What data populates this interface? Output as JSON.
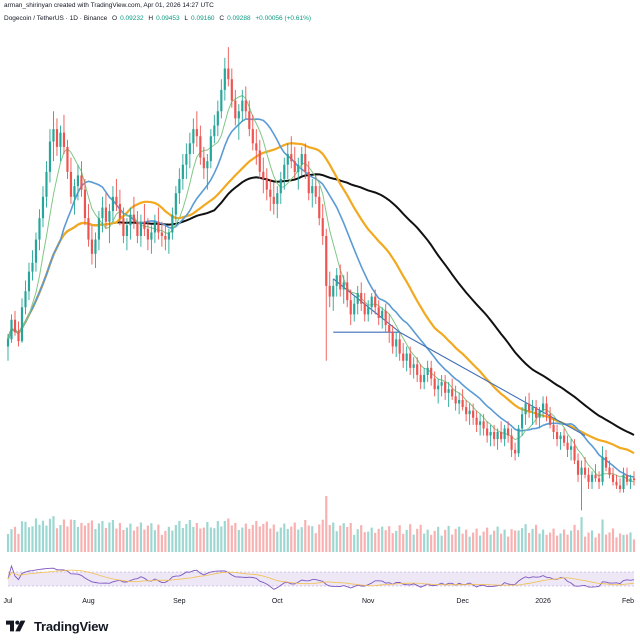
{
  "header": {
    "author_line": "arman_shirinyan created with TradingView.com, Apr 01, 2026 14:27 UTC",
    "symbol_line": "Dogecoin / TetherUS · 1D · Binance",
    "open_label": "O",
    "open_value": "0.09232",
    "high_label": "H",
    "high_value": "0.09453",
    "low_label": "L",
    "low_value": "0.09160",
    "close_label": "C",
    "close_value": "0.09288",
    "change_value": "+0.00056 (+0.61%)"
  },
  "footer": {
    "brand": "TradingView",
    "brand_logo": "tradingview-logo-icon"
  },
  "colors": {
    "up": "#26a69a",
    "down": "#ef5350",
    "ma_fast": "#81c784",
    "ma_blue": "#5b9bd5",
    "ma_orange": "#f2a91f",
    "ma_black": "#111111",
    "trendline": "#3f6fb5",
    "rsi": "#7e57c2",
    "rsi_band": "#ede7f6"
  },
  "chart_data": {
    "type": "candlestick",
    "x_labels": [
      "Jul",
      "Aug",
      "Sep",
      "Oct",
      "Nov",
      "Dec",
      "2026",
      "Feb"
    ],
    "y_axis": "hidden",
    "candles_ohlc": [
      [
        0.168,
        0.175,
        0.16,
        0.172
      ],
      [
        0.172,
        0.186,
        0.17,
        0.183
      ],
      [
        0.183,
        0.188,
        0.174,
        0.176
      ],
      [
        0.176,
        0.182,
        0.168,
        0.171
      ],
      [
        0.171,
        0.195,
        0.17,
        0.19
      ],
      [
        0.19,
        0.205,
        0.186,
        0.199
      ],
      [
        0.199,
        0.215,
        0.194,
        0.21
      ],
      [
        0.21,
        0.222,
        0.205,
        0.215
      ],
      [
        0.215,
        0.232,
        0.21,
        0.228
      ],
      [
        0.228,
        0.245,
        0.222,
        0.24
      ],
      [
        0.24,
        0.258,
        0.235,
        0.252
      ],
      [
        0.252,
        0.272,
        0.246,
        0.266
      ],
      [
        0.266,
        0.29,
        0.26,
        0.283
      ],
      [
        0.283,
        0.3,
        0.272,
        0.29
      ],
      [
        0.29,
        0.296,
        0.275,
        0.28
      ],
      [
        0.28,
        0.292,
        0.272,
        0.288
      ],
      [
        0.288,
        0.298,
        0.276,
        0.28
      ],
      [
        0.28,
        0.284,
        0.262,
        0.266
      ],
      [
        0.266,
        0.274,
        0.248,
        0.252
      ],
      [
        0.252,
        0.262,
        0.242,
        0.258
      ],
      [
        0.258,
        0.27,
        0.25,
        0.264
      ],
      [
        0.264,
        0.272,
        0.252,
        0.256
      ],
      [
        0.256,
        0.262,
        0.236,
        0.24
      ],
      [
        0.24,
        0.248,
        0.224,
        0.228
      ],
      [
        0.228,
        0.236,
        0.214,
        0.22
      ],
      [
        0.22,
        0.232,
        0.212,
        0.228
      ],
      [
        0.228,
        0.244,
        0.222,
        0.24
      ],
      [
        0.24,
        0.252,
        0.232,
        0.246
      ],
      [
        0.246,
        0.254,
        0.234,
        0.238
      ],
      [
        0.238,
        0.248,
        0.226,
        0.244
      ],
      [
        0.244,
        0.258,
        0.238,
        0.252
      ],
      [
        0.252,
        0.262,
        0.244,
        0.248
      ],
      [
        0.248,
        0.256,
        0.236,
        0.24
      ],
      [
        0.24,
        0.246,
        0.226,
        0.23
      ],
      [
        0.23,
        0.24,
        0.222,
        0.236
      ],
      [
        0.236,
        0.246,
        0.228,
        0.242
      ],
      [
        0.242,
        0.252,
        0.234,
        0.238
      ],
      [
        0.238,
        0.244,
        0.226,
        0.23
      ],
      [
        0.23,
        0.242,
        0.224,
        0.238
      ],
      [
        0.238,
        0.248,
        0.23,
        0.234
      ],
      [
        0.234,
        0.24,
        0.222,
        0.228
      ],
      [
        0.228,
        0.236,
        0.22,
        0.232
      ],
      [
        0.232,
        0.242,
        0.226,
        0.238
      ],
      [
        0.238,
        0.246,
        0.228,
        0.232
      ],
      [
        0.232,
        0.238,
        0.224,
        0.23
      ],
      [
        0.23,
        0.236,
        0.222,
        0.228
      ],
      [
        0.228,
        0.234,
        0.22,
        0.232
      ],
      [
        0.232,
        0.246,
        0.228,
        0.242
      ],
      [
        0.242,
        0.258,
        0.238,
        0.254
      ],
      [
        0.254,
        0.268,
        0.248,
        0.262
      ],
      [
        0.262,
        0.276,
        0.256,
        0.27
      ],
      [
        0.27,
        0.282,
        0.262,
        0.276
      ],
      [
        0.276,
        0.288,
        0.268,
        0.282
      ],
      [
        0.282,
        0.296,
        0.276,
        0.29
      ],
      [
        0.29,
        0.3,
        0.28,
        0.286
      ],
      [
        0.286,
        0.292,
        0.27,
        0.274
      ],
      [
        0.274,
        0.28,
        0.262,
        0.268
      ],
      [
        0.268,
        0.276,
        0.256,
        0.272
      ],
      [
        0.272,
        0.29,
        0.268,
        0.286
      ],
      [
        0.286,
        0.298,
        0.282,
        0.292
      ],
      [
        0.292,
        0.306,
        0.286,
        0.3
      ],
      [
        0.3,
        0.318,
        0.296,
        0.312
      ],
      [
        0.312,
        0.33,
        0.306,
        0.324
      ],
      [
        0.324,
        0.336,
        0.314,
        0.318
      ],
      [
        0.318,
        0.324,
        0.302,
        0.306
      ],
      [
        0.306,
        0.312,
        0.292,
        0.296
      ],
      [
        0.296,
        0.304,
        0.284,
        0.3
      ],
      [
        0.3,
        0.312,
        0.294,
        0.306
      ],
      [
        0.306,
        0.314,
        0.296,
        0.3
      ],
      [
        0.3,
        0.306,
        0.286,
        0.29
      ],
      [
        0.29,
        0.298,
        0.278,
        0.282
      ],
      [
        0.282,
        0.29,
        0.27,
        0.278
      ],
      [
        0.278,
        0.284,
        0.262,
        0.266
      ],
      [
        0.266,
        0.274,
        0.254,
        0.262
      ],
      [
        0.262,
        0.268,
        0.25,
        0.256
      ],
      [
        0.256,
        0.262,
        0.244,
        0.252
      ],
      [
        0.252,
        0.26,
        0.242,
        0.248
      ],
      [
        0.248,
        0.258,
        0.24,
        0.254
      ],
      [
        0.254,
        0.266,
        0.248,
        0.262
      ],
      [
        0.262,
        0.274,
        0.256,
        0.27
      ],
      [
        0.27,
        0.282,
        0.262,
        0.276
      ],
      [
        0.276,
        0.286,
        0.268,
        0.272
      ],
      [
        0.272,
        0.28,
        0.262,
        0.266
      ],
      [
        0.266,
        0.274,
        0.256,
        0.27
      ],
      [
        0.27,
        0.28,
        0.264,
        0.276
      ],
      [
        0.276,
        0.282,
        0.262,
        0.266
      ],
      [
        0.266,
        0.272,
        0.25,
        0.254
      ],
      [
        0.254,
        0.262,
        0.246,
        0.258
      ],
      [
        0.258,
        0.264,
        0.248,
        0.252
      ],
      [
        0.252,
        0.258,
        0.236,
        0.24
      ],
      [
        0.24,
        0.248,
        0.225,
        0.23
      ],
      [
        0.23,
        0.234,
        0.16,
        0.202
      ],
      [
        0.202,
        0.21,
        0.19,
        0.196
      ],
      [
        0.196,
        0.206,
        0.188,
        0.202
      ],
      [
        0.202,
        0.212,
        0.196,
        0.208
      ],
      [
        0.208,
        0.214,
        0.196,
        0.2
      ],
      [
        0.2,
        0.208,
        0.192,
        0.204
      ],
      [
        0.204,
        0.21,
        0.19,
        0.194
      ],
      [
        0.194,
        0.2,
        0.18,
        0.186
      ],
      [
        0.186,
        0.196,
        0.182,
        0.192
      ],
      [
        0.192,
        0.202,
        0.186,
        0.198
      ],
      [
        0.198,
        0.204,
        0.188,
        0.192
      ],
      [
        0.192,
        0.198,
        0.182,
        0.186
      ],
      [
        0.186,
        0.194,
        0.182,
        0.19
      ],
      [
        0.19,
        0.198,
        0.186,
        0.196
      ],
      [
        0.196,
        0.2,
        0.186,
        0.19
      ],
      [
        0.19,
        0.194,
        0.18,
        0.184
      ],
      [
        0.184,
        0.19,
        0.178,
        0.188
      ],
      [
        0.188,
        0.192,
        0.176,
        0.18
      ],
      [
        0.18,
        0.186,
        0.17,
        0.176
      ],
      [
        0.176,
        0.18,
        0.164,
        0.168
      ],
      [
        0.168,
        0.176,
        0.162,
        0.172
      ],
      [
        0.172,
        0.176,
        0.16,
        0.164
      ],
      [
        0.164,
        0.17,
        0.156,
        0.16
      ],
      [
        0.16,
        0.168,
        0.154,
        0.164
      ],
      [
        0.164,
        0.168,
        0.152,
        0.156
      ],
      [
        0.156,
        0.162,
        0.15,
        0.158
      ],
      [
        0.158,
        0.162,
        0.148,
        0.152
      ],
      [
        0.152,
        0.158,
        0.144,
        0.148
      ],
      [
        0.148,
        0.156,
        0.144,
        0.152
      ],
      [
        0.152,
        0.16,
        0.148,
        0.156
      ],
      [
        0.156,
        0.16,
        0.146,
        0.15
      ],
      [
        0.15,
        0.154,
        0.14,
        0.144
      ],
      [
        0.144,
        0.15,
        0.136,
        0.146
      ],
      [
        0.146,
        0.152,
        0.14,
        0.148
      ],
      [
        0.148,
        0.152,
        0.138,
        0.142
      ],
      [
        0.142,
        0.148,
        0.134,
        0.144
      ],
      [
        0.144,
        0.15,
        0.138,
        0.14
      ],
      [
        0.14,
        0.146,
        0.132,
        0.136
      ],
      [
        0.136,
        0.142,
        0.13,
        0.138
      ],
      [
        0.138,
        0.144,
        0.132,
        0.134
      ],
      [
        0.134,
        0.138,
        0.126,
        0.13
      ],
      [
        0.13,
        0.136,
        0.124,
        0.132
      ],
      [
        0.132,
        0.136,
        0.124,
        0.128
      ],
      [
        0.128,
        0.132,
        0.12,
        0.124
      ],
      [
        0.124,
        0.13,
        0.118,
        0.126
      ],
      [
        0.126,
        0.13,
        0.118,
        0.122
      ],
      [
        0.122,
        0.126,
        0.114,
        0.118
      ],
      [
        0.118,
        0.124,
        0.112,
        0.12
      ],
      [
        0.12,
        0.124,
        0.112,
        0.116
      ],
      [
        0.116,
        0.122,
        0.11,
        0.12
      ],
      [
        0.12,
        0.126,
        0.114,
        0.116
      ],
      [
        0.116,
        0.124,
        0.112,
        0.122
      ],
      [
        0.122,
        0.126,
        0.114,
        0.118
      ],
      [
        0.118,
        0.122,
        0.106,
        0.11
      ],
      [
        0.11,
        0.114,
        0.104,
        0.108
      ],
      [
        0.108,
        0.124,
        0.106,
        0.122
      ],
      [
        0.122,
        0.134,
        0.118,
        0.13
      ],
      [
        0.13,
        0.14,
        0.124,
        0.136
      ],
      [
        0.136,
        0.142,
        0.128,
        0.132
      ],
      [
        0.132,
        0.138,
        0.124,
        0.134
      ],
      [
        0.134,
        0.138,
        0.124,
        0.128
      ],
      [
        0.128,
        0.134,
        0.122,
        0.132
      ],
      [
        0.132,
        0.14,
        0.128,
        0.136
      ],
      [
        0.136,
        0.14,
        0.126,
        0.13
      ],
      [
        0.13,
        0.134,
        0.122,
        0.124
      ],
      [
        0.124,
        0.128,
        0.116,
        0.12
      ],
      [
        0.12,
        0.124,
        0.112,
        0.116
      ],
      [
        0.116,
        0.12,
        0.11,
        0.118
      ],
      [
        0.118,
        0.122,
        0.112,
        0.114
      ],
      [
        0.114,
        0.118,
        0.106,
        0.11
      ],
      [
        0.11,
        0.116,
        0.104,
        0.112
      ],
      [
        0.112,
        0.116,
        0.102,
        0.104
      ],
      [
        0.104,
        0.108,
        0.092,
        0.096
      ],
      [
        0.096,
        0.104,
        0.076,
        0.1
      ],
      [
        0.1,
        0.106,
        0.094,
        0.096
      ],
      [
        0.096,
        0.1,
        0.088,
        0.092
      ],
      [
        0.092,
        0.098,
        0.088,
        0.096
      ],
      [
        0.096,
        0.102,
        0.092,
        0.094
      ],
      [
        0.094,
        0.098,
        0.088,
        0.092
      ],
      [
        0.092,
        0.112,
        0.09,
        0.106
      ],
      [
        0.106,
        0.11,
        0.098,
        0.1
      ],
      [
        0.1,
        0.104,
        0.094,
        0.096
      ],
      [
        0.096,
        0.1,
        0.09,
        0.092
      ],
      [
        0.092,
        0.096,
        0.088,
        0.09
      ],
      [
        0.09,
        0.094,
        0.086,
        0.088
      ],
      [
        0.088,
        0.1,
        0.086,
        0.096
      ],
      [
        0.096,
        0.1,
        0.09,
        0.092
      ],
      [
        0.092,
        0.096,
        0.088,
        0.094
      ],
      [
        0.094,
        0.098,
        0.09,
        0.093
      ]
    ]
  }
}
